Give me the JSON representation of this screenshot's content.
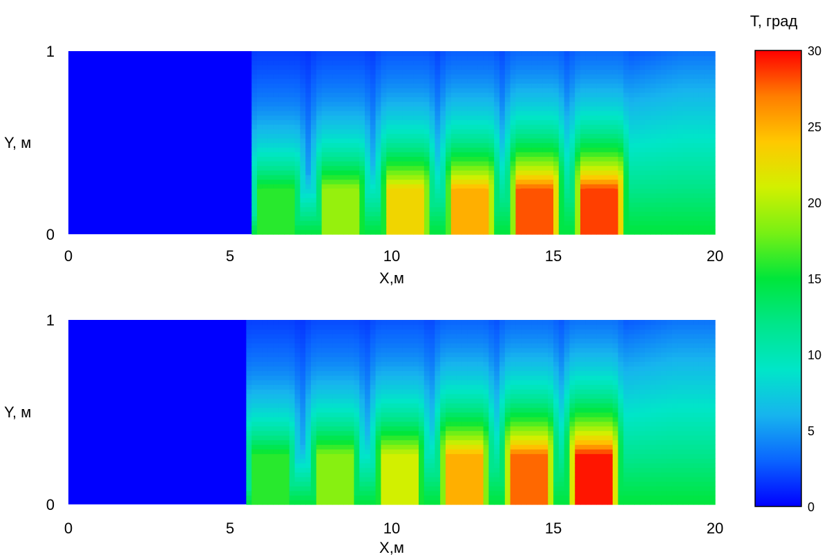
{
  "chart_data": [
    {
      "type": "heatmap",
      "title": "",
      "xlabel": "X,м",
      "ylabel": "Y, м",
      "xlim": [
        0,
        20
      ],
      "ylim": [
        0,
        1
      ],
      "x_ticks": [
        "0",
        "5",
        "10",
        "15",
        "20"
      ],
      "y_ticks": [
        "0",
        "1"
      ],
      "field_start_x": 5.7,
      "heated_zones": [
        {
          "x_start": 5.9,
          "x_end": 7.0,
          "y_top": 0.25,
          "temperature": 16
        },
        {
          "x_start": 7.9,
          "x_end": 9.0,
          "y_top": 0.25,
          "temperature": 19
        },
        {
          "x_start": 9.9,
          "x_end": 11.0,
          "y_top": 0.25,
          "temperature": 23
        },
        {
          "x_start": 11.9,
          "x_end": 13.0,
          "y_top": 0.25,
          "temperature": 25
        },
        {
          "x_start": 13.9,
          "x_end": 15.0,
          "y_top": 0.25,
          "temperature": 28
        },
        {
          "x_start": 15.9,
          "x_end": 17.0,
          "y_top": 0.25,
          "temperature": 28.5
        }
      ]
    },
    {
      "type": "heatmap",
      "title": "",
      "xlabel": "X,м",
      "ylabel": "Y, м",
      "xlim": [
        0,
        20
      ],
      "ylim": [
        0,
        1
      ],
      "x_ticks": [
        "0",
        "5",
        "10",
        "15",
        "20"
      ],
      "y_ticks": [
        "0",
        "1"
      ],
      "field_start_x": 5.5,
      "heated_zones": [
        {
          "x_start": 5.7,
          "x_end": 6.8,
          "y_top": 0.27,
          "temperature": 16
        },
        {
          "x_start": 7.7,
          "x_end": 8.8,
          "y_top": 0.27,
          "temperature": 18.5
        },
        {
          "x_start": 9.7,
          "x_end": 10.8,
          "y_top": 0.27,
          "temperature": 21
        },
        {
          "x_start": 11.7,
          "x_end": 12.8,
          "y_top": 0.27,
          "temperature": 25
        },
        {
          "x_start": 13.7,
          "x_end": 14.8,
          "y_top": 0.27,
          "temperature": 27.5
        },
        {
          "x_start": 15.7,
          "x_end": 16.8,
          "y_top": 0.27,
          "temperature": 29.5
        }
      ]
    }
  ],
  "colorbar": {
    "title": "T, град",
    "min": 0,
    "max": 30,
    "ticks": [
      "0",
      "5",
      "10",
      "15",
      "20",
      "25",
      "30"
    ]
  }
}
